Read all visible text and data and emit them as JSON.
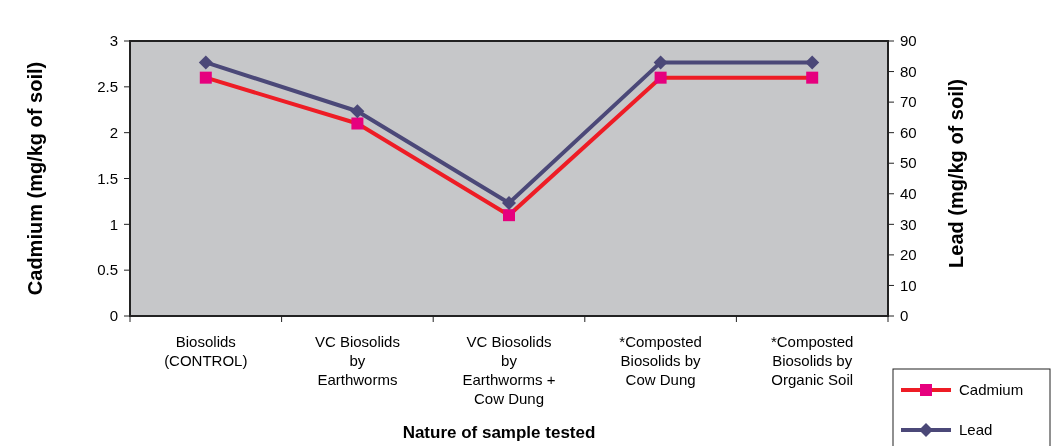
{
  "chart_data": {
    "type": "line",
    "xlabel": "Nature of sample tested",
    "ylabel": "Cadmium (mg/kg of soil)",
    "y2label": "Lead (mg/kg of soil)",
    "categories": [
      "Biosolids\n(CONTROL)",
      "VC Biosolids\nby\nEarthworms",
      "VC Biosolids\nby\nEarthworms +\nCow Dung",
      "*Composted\nBiosolids by\nCow Dung",
      "*Composted\nBiosolids by\nOrganic Soil"
    ],
    "series": [
      {
        "name": "Cadmium",
        "color": "#ee1c25",
        "marker": "square",
        "values": [
          2.6,
          2.1,
          1.1,
          2.6,
          2.6
        ]
      },
      {
        "name": "Lead",
        "color": "#4b4878",
        "marker": "diamond",
        "axis": "y2",
        "values": [
          83,
          67,
          37,
          83,
          83
        ]
      }
    ],
    "ylim": [
      0,
      3
    ],
    "yticks": [
      0,
      0.5,
      1,
      1.5,
      2,
      2.5,
      3
    ],
    "y2lim": [
      0,
      90
    ],
    "y2ticks": [
      0,
      10,
      20,
      30,
      40,
      50,
      60,
      70,
      80,
      90
    ],
    "grid": false,
    "legend": "bottom right",
    "line_style": "solid"
  }
}
